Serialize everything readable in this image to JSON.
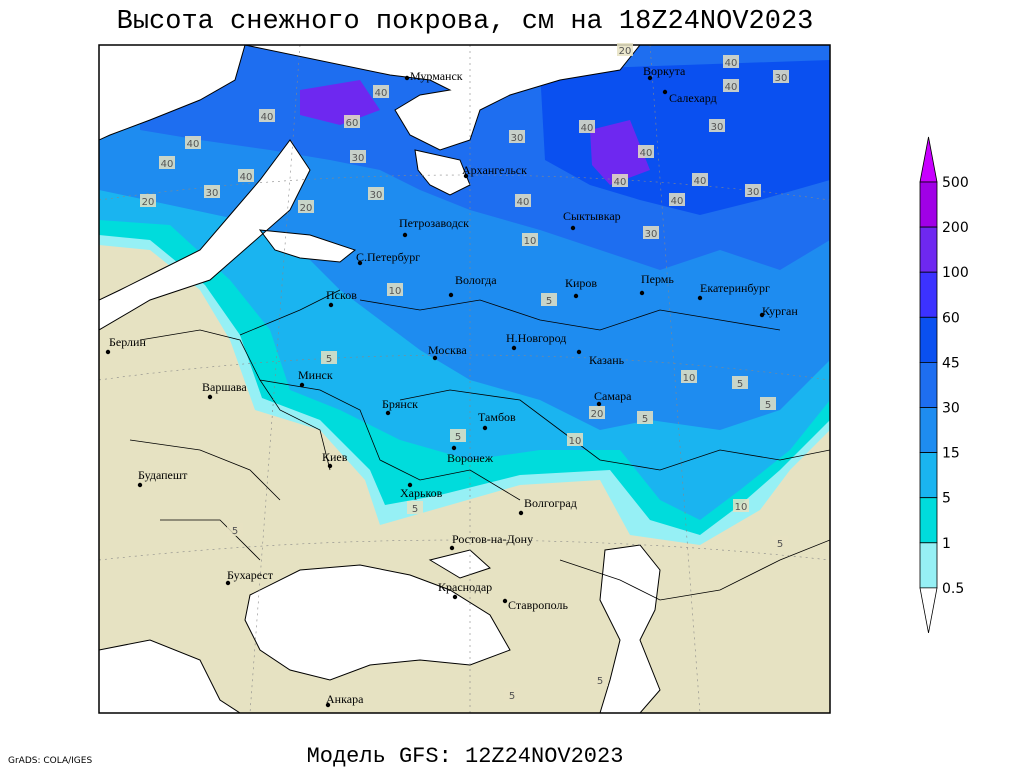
{
  "title": "Высота снежного покрова, см на 18Z24NOV2023",
  "footer_model": "Модель GFS: 12Z24NOV2023",
  "footer_grads": "GrADS: COLA/IGES",
  "cities": [
    "Мурманск",
    "Воркута",
    "Салехард",
    "Архангельск",
    "Петрозаводск",
    "Сыктывкар",
    "С.Петербург",
    "Вологда",
    "Киров",
    "Пермь",
    "Екатеринбург",
    "Курган",
    "Псков",
    "Берлин",
    "Н.Новгород",
    "Москва",
    "Казань",
    "Минск",
    "Варшава",
    "Брянск",
    "Самара",
    "Тамбов",
    "Киев",
    "Воронеж",
    "Будапешт",
    "Харьков",
    "Волгоград",
    "Ростов-на-Дону",
    "Бухарест",
    "Краснодар",
    "Ставрополь",
    "Анкара"
  ],
  "contour_labels": [
    40,
    60,
    40,
    40,
    40,
    30,
    30,
    20,
    30,
    20,
    40,
    30,
    40,
    40,
    30,
    40,
    30,
    40,
    40,
    40,
    30,
    40,
    40,
    30,
    10,
    10,
    5,
    5,
    10,
    5,
    5,
    5,
    20,
    10,
    5,
    5,
    10,
    5,
    5,
    5,
    5,
    20
  ],
  "legend": {
    "levels": [
      500,
      200,
      100,
      60,
      45,
      30,
      15,
      5,
      1,
      0.5
    ],
    "colors": [
      "#c800ff",
      "#a000e6",
      "#6e28f0",
      "#3c32ff",
      "#0a50f0",
      "#1e6ef0",
      "#1e8cf0",
      "#1ab4f0",
      "#00dcdc",
      "#96f0f5",
      "#ffffff"
    ]
  }
}
